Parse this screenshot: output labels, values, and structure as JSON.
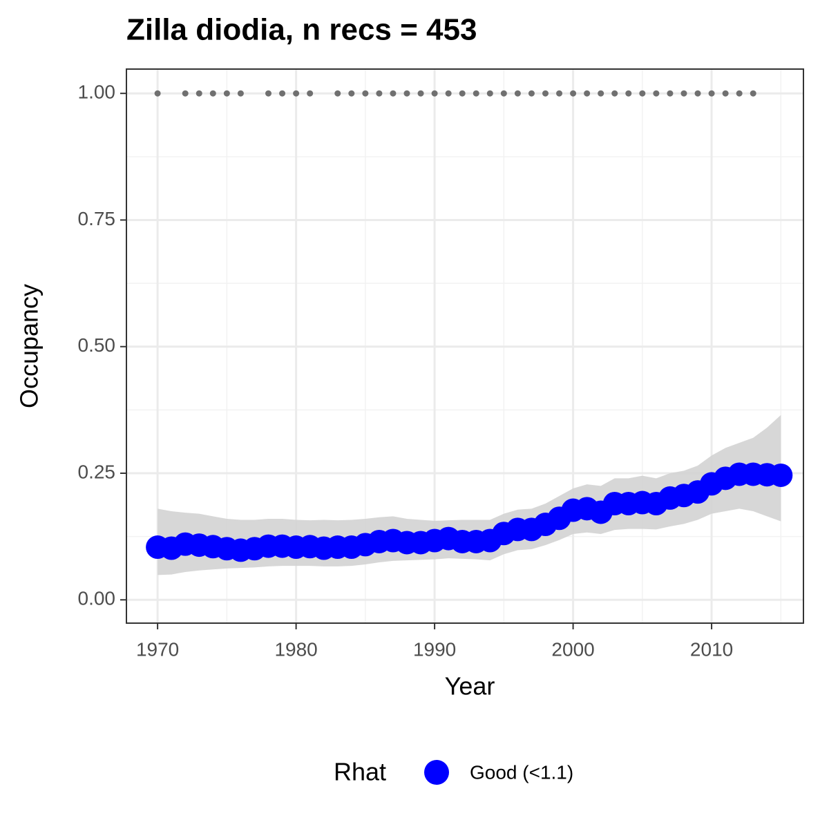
{
  "chart_data": {
    "type": "scatter",
    "title": "Zilla diodia, n recs = 453",
    "x_label": "Year",
    "y_label": "Occupancy",
    "legend_title": "Rhat",
    "x": [
      1970,
      1971,
      1972,
      1973,
      1974,
      1975,
      1976,
      1977,
      1978,
      1979,
      1980,
      1981,
      1982,
      1983,
      1984,
      1985,
      1986,
      1987,
      1988,
      1989,
      1990,
      1991,
      1992,
      1993,
      1994,
      1995,
      1996,
      1997,
      1998,
      1999,
      2000,
      2001,
      2002,
      2003,
      2004,
      2005,
      2006,
      2007,
      2008,
      2009,
      2010,
      2011,
      2012,
      2013,
      2014,
      2015
    ],
    "series": [
      {
        "name": "Good (<1.1)",
        "color": "#0000ff",
        "values": [
          0.104,
          0.102,
          0.11,
          0.108,
          0.105,
          0.101,
          0.098,
          0.101,
          0.106,
          0.106,
          0.104,
          0.105,
          0.102,
          0.104,
          0.104,
          0.109,
          0.115,
          0.117,
          0.113,
          0.113,
          0.117,
          0.121,
          0.115,
          0.115,
          0.117,
          0.131,
          0.139,
          0.139,
          0.149,
          0.161,
          0.177,
          0.18,
          0.173,
          0.19,
          0.19,
          0.192,
          0.19,
          0.201,
          0.206,
          0.213,
          0.229,
          0.24,
          0.248,
          0.248,
          0.247,
          0.246
        ]
      }
    ],
    "ribbon": {
      "color": "#d3d3d3",
      "lower": [
        0.049,
        0.05,
        0.055,
        0.058,
        0.06,
        0.062,
        0.063,
        0.064,
        0.066,
        0.067,
        0.067,
        0.067,
        0.066,
        0.066,
        0.067,
        0.07,
        0.074,
        0.077,
        0.078,
        0.079,
        0.08,
        0.082,
        0.081,
        0.08,
        0.078,
        0.09,
        0.098,
        0.1,
        0.108,
        0.118,
        0.13,
        0.133,
        0.13,
        0.138,
        0.14,
        0.14,
        0.139,
        0.145,
        0.15,
        0.158,
        0.17,
        0.175,
        0.18,
        0.175,
        0.165,
        0.155
      ],
      "upper": [
        0.18,
        0.175,
        0.172,
        0.17,
        0.165,
        0.16,
        0.158,
        0.158,
        0.16,
        0.16,
        0.158,
        0.157,
        0.158,
        0.157,
        0.158,
        0.16,
        0.163,
        0.165,
        0.16,
        0.158,
        0.156,
        0.157,
        0.158,
        0.158,
        0.158,
        0.17,
        0.178,
        0.18,
        0.19,
        0.205,
        0.22,
        0.228,
        0.225,
        0.24,
        0.24,
        0.245,
        0.24,
        0.25,
        0.255,
        0.265,
        0.285,
        0.3,
        0.31,
        0.32,
        0.34,
        0.365
      ]
    },
    "records": {
      "color": "#707070",
      "x": [
        1970,
        1972,
        1973,
        1974,
        1975,
        1976,
        1978,
        1979,
        1980,
        1981,
        1983,
        1984,
        1985,
        1986,
        1987,
        1988,
        1989,
        1990,
        1991,
        1992,
        1993,
        1994,
        1995,
        1996,
        1997,
        1998,
        1999,
        2000,
        2001,
        2002,
        2003,
        2004,
        2005,
        2006,
        2007,
        2008,
        2009,
        2010,
        2011,
        2012,
        2013
      ],
      "values": [
        1,
        1,
        1,
        1,
        1,
        1,
        1,
        1,
        1,
        1,
        1,
        1,
        1,
        1,
        1,
        1,
        1,
        1,
        1,
        1,
        1,
        1,
        1,
        1,
        1,
        1,
        1,
        1,
        1,
        1,
        1,
        1,
        1,
        1,
        1,
        1,
        1,
        1,
        1,
        1,
        1
      ]
    },
    "xlim": [
      1967.75,
      2016.63
    ],
    "ylim": [
      -0.046,
      1.048
    ],
    "xticks": [
      1970,
      1980,
      1990,
      2000,
      2010
    ],
    "yticks": [
      {
        "value": 0,
        "label": "0.00"
      },
      {
        "value": 0.25,
        "label": "0.25"
      },
      {
        "value": 0.5,
        "label": "0.50"
      },
      {
        "value": 0.75,
        "label": "0.75"
      },
      {
        "value": 1,
        "label": "1.00"
      }
    ],
    "xminor": [
      1975,
      1985,
      1995,
      2005,
      2015
    ],
    "yminor": [
      0.125,
      0.375,
      0.625,
      0.875
    ],
    "grid": true
  }
}
